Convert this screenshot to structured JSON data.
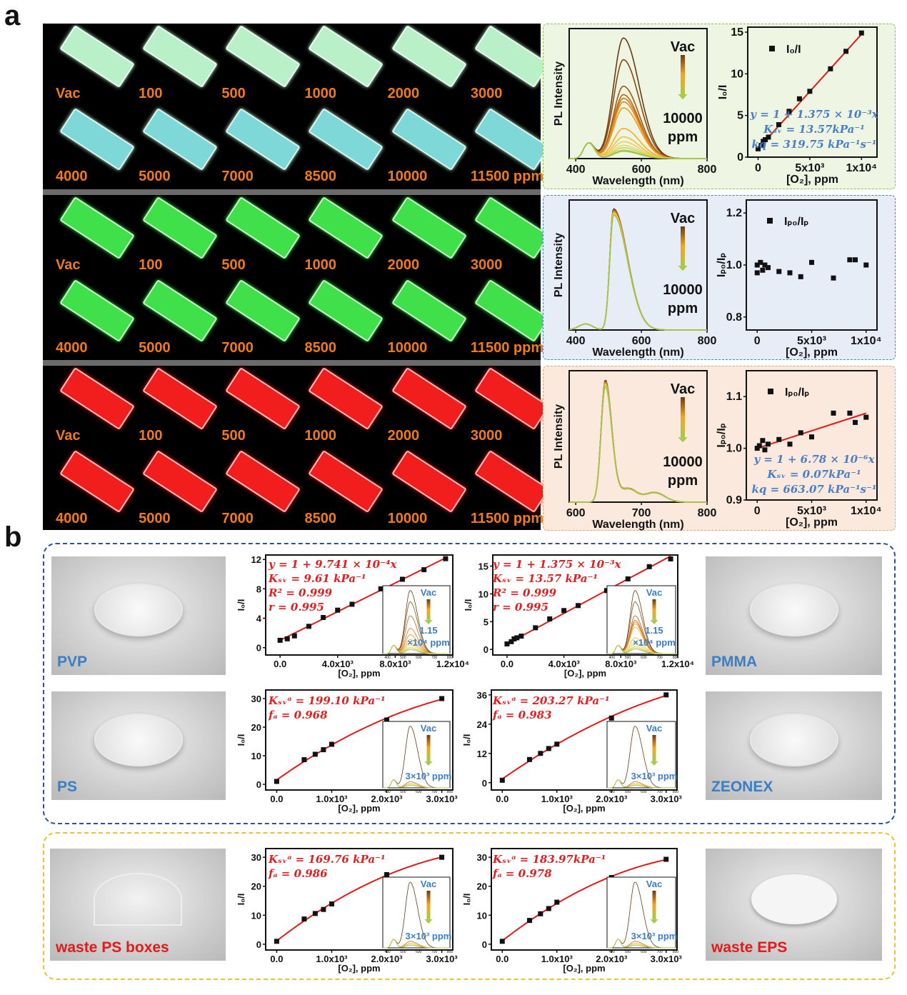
{
  "figure": {
    "panel_a_label": "a",
    "panel_b_label": "b"
  },
  "panel_a": {
    "label_color": "#f07a1e",
    "rows": [
      {
        "slab_color": "#b9f0c8",
        "labels": [
          "Vac",
          "100",
          "500",
          "1000",
          "2000",
          "3000",
          "4000",
          "5000",
          "7000",
          "8500",
          "10000",
          "11500 ppm"
        ]
      },
      {
        "slab_color": "#3fe04a",
        "labels": [
          "Vac",
          "100",
          "500",
          "1000",
          "2000",
          "3000",
          "4000",
          "5000",
          "7000",
          "8500",
          "10000",
          "11500 ppm"
        ]
      },
      {
        "slab_color": "#f21e1e",
        "labels": [
          "Vac",
          "100",
          "500",
          "1000",
          "2000",
          "3000",
          "4000",
          "5000",
          "7000",
          "8500",
          "10000",
          "11500 ppm"
        ]
      }
    ]
  },
  "panel_b": {
    "photos": [
      {
        "label": "PVP",
        "color": "#3b7ec4"
      },
      {
        "label": "PS",
        "color": "#3b7ec4"
      },
      {
        "label": "PMMA",
        "color": "#3b7ec4"
      },
      {
        "label": "ZEONEX",
        "color": "#3b7ec4"
      },
      {
        "label": "waste PS boxes",
        "color": "#e21b1b"
      },
      {
        "label": "waste EPS",
        "color": "#e21b1b"
      }
    ]
  },
  "colors": {
    "fit_line": "#e41a1a",
    "eq_blue": "#4a7fc8",
    "eq_red": "#e02020",
    "box_green": "#8bc34a",
    "box_blue": "#4f7fc0",
    "box_orange": "#f0a070",
    "box_b_blue": "#2e4f9a",
    "box_b_yellow": "#f0c030"
  },
  "chart_data": [
    {
      "type": "line",
      "xlabel": "Wavelength (nm)",
      "ylabel": "PL Intensity",
      "xlim": [
        380,
        800
      ],
      "xticks": [
        400,
        600,
        800
      ],
      "xtick_labels": [
        "400",
        "600",
        "800"
      ],
      "peak_wavelength_nm": 545,
      "peak_amplitudes": [
        1,
        0.82,
        0.6,
        0.53,
        0.5,
        0.47,
        0.42,
        0.25,
        0.18,
        0.14,
        0.11,
        0.09,
        0.07,
        0.06
      ],
      "arrow_top": "Vac",
      "arrow_bottom": [
        "10000",
        "ppm"
      ]
    },
    {
      "type": "scatter",
      "xlabel": "[O₂], ppm",
      "ylabel": "I₀/I",
      "legend": "I₀/I",
      "xlim": [
        -1000,
        11500
      ],
      "ylim": [
        0,
        15.6
      ],
      "xticks": [
        0,
        5000,
        10000
      ],
      "xtick_labels": [
        "0",
        "5x10³",
        "1x10⁴"
      ],
      "yticks": [
        0,
        5,
        10,
        15
      ],
      "ytick_labels": [
        "0",
        "5",
        "10",
        "15"
      ],
      "x": [
        0,
        300,
        500,
        700,
        1000,
        2000,
        3000,
        4000,
        5000,
        7000,
        8500,
        10000
      ],
      "y": [
        1,
        1.4,
        1.9,
        2.1,
        2.4,
        3.9,
        5.5,
        7.0,
        7.9,
        10.6,
        12.7,
        14.9
      ],
      "fit": {
        "type": "linear",
        "intercept": 1,
        "slope": 0.001375
      },
      "equation": [
        "y = 1 + 1.375 × 10⁻³x",
        "Kₛᵥ = 13.57kPa⁻¹",
        "kq = 319.75 kPa⁻¹s⁻¹"
      ]
    },
    {
      "type": "line",
      "xlabel": "Wavelength (nm)",
      "ylabel": "PL Intensity",
      "xlim": [
        380,
        800
      ],
      "xticks": [
        400,
        600,
        800
      ],
      "xtick_labels": [
        "400",
        "600",
        "800"
      ],
      "peak_wavelength_nm": 515,
      "peak_amplitudes": [
        1,
        0.99,
        0.98,
        0.97,
        0.96,
        0.95
      ],
      "arrow_top": "Vac",
      "arrow_bottom": [
        "10000",
        "ppm"
      ]
    },
    {
      "type": "scatter",
      "xlabel": "[O₂], ppm",
      "ylabel": "Iₚ₀/Iₚ",
      "legend": "Iₚ₀/Iₚ",
      "xlim": [
        -1000,
        11000
      ],
      "ylim": [
        0.75,
        1.25
      ],
      "xticks": [
        0,
        5000,
        10000
      ],
      "xtick_labels": [
        "0",
        "5x10³",
        "1x10⁴"
      ],
      "yticks": [
        0.8,
        1.0,
        1.2
      ],
      "ytick_labels": [
        "0.8",
        "1.0",
        "1.2"
      ],
      "x": [
        0,
        0,
        300,
        500,
        700,
        1000,
        2000,
        3000,
        4000,
        5000,
        7000,
        8500,
        9000,
        10000
      ],
      "y": [
        1.0,
        0.97,
        1.01,
        0.98,
        1.0,
        0.99,
        0.975,
        0.97,
        0.955,
        1.01,
        0.95,
        1.02,
        1.02,
        1.0
      ]
    },
    {
      "type": "line",
      "xlabel": "Wavelength (nm)",
      "ylabel": "PL Intensity",
      "xlim": [
        590,
        800
      ],
      "xticks": [
        600,
        700,
        800
      ],
      "xtick_labels": [
        "600",
        "700",
        "800"
      ],
      "peak_wavelength_nm": 645,
      "peak_amplitudes": [
        1,
        0.99,
        0.98,
        0.97,
        0.96,
        0.95
      ],
      "arrow_top": "Vac",
      "arrow_bottom": [
        "10000",
        "ppm"
      ]
    },
    {
      "type": "scatter",
      "xlabel": "[O₂], ppm",
      "ylabel": "Iₚ₀/Iₚ",
      "legend": "Iₚ₀/Iₚ",
      "xlim": [
        -1000,
        11000
      ],
      "ylim": [
        0.9,
        1.15
      ],
      "xticks": [
        0,
        5000,
        10000
      ],
      "xtick_labels": [
        "0",
        "5x10³",
        "1x10⁴"
      ],
      "yticks": [
        0.9,
        1.0,
        1.1
      ],
      "ytick_labels": [
        "0.9",
        "1.0",
        "1.1"
      ],
      "x": [
        0,
        200,
        500,
        700,
        1000,
        2000,
        3000,
        4000,
        5000,
        7000,
        8500,
        9000,
        10000
      ],
      "y": [
        1.0,
        1.005,
        1.015,
        0.997,
        1.008,
        1.017,
        1.008,
        1.03,
        1.022,
        1.068,
        1.068,
        1.05,
        1.06
      ],
      "fit": {
        "type": "linear",
        "intercept": 1,
        "slope": 6.78e-06
      },
      "equation": [
        "y = 1 + 6.78 × 10⁻⁶x",
        "Kₛᵥ = 0.07kPa⁻¹",
        "kq = 663.07 kPa⁻¹s⁻¹"
      ]
    },
    {
      "type": "scatter",
      "xlabel": "[O₂], ppm",
      "ylabel": "I₀/I",
      "xlim": [
        -1000,
        12000
      ],
      "ylim": [
        -1,
        12.6
      ],
      "xticks": [
        0,
        4000,
        8000,
        12000
      ],
      "xtick_labels": [
        "0.0",
        "4.0x10³",
        "8.0x10³",
        "1.2x10⁴"
      ],
      "yticks": [
        0,
        4,
        8,
        12
      ],
      "ytick_labels": [
        "0",
        "4",
        "8",
        "12"
      ],
      "x": [
        0,
        500,
        1000,
        2000,
        3000,
        4000,
        5000,
        7000,
        8500,
        10000,
        11500
      ],
      "y": [
        1,
        1.2,
        1.6,
        2.9,
        4.1,
        5.1,
        5.9,
        8.0,
        9.3,
        10.6,
        12.1
      ],
      "fit": {
        "type": "linear",
        "intercept": 1,
        "slope": 0.0009741
      },
      "equation": [
        "y = 1 + 9.741 × 10⁻⁴x",
        "Kₛᵥ = 9.61 kPa⁻¹",
        "R² = 0.999",
        "r = 0.995"
      ],
      "inset": {
        "peak_wavelength_nm": 545,
        "peak_amplitudes": [
          1,
          0.82,
          0.6,
          0.4,
          0.3,
          0.22,
          0.17,
          0.13,
          0.1,
          0.08,
          0.06
        ],
        "xticks": [
          400,
          500,
          600,
          700,
          800
        ],
        "arrow_top": "Vac",
        "arrow_bottom": [
          "1.15",
          "×10⁴ ppm"
        ]
      }
    },
    {
      "type": "scatter",
      "xlabel": "[O₂], ppm",
      "ylabel": "I₀/I",
      "xlim": [
        -1000,
        12000
      ],
      "ylim": [
        -1,
        17
      ],
      "xticks": [
        0,
        4000,
        8000,
        12000
      ],
      "xtick_labels": [
        "0.0",
        "4.0x10³",
        "8.0x10³",
        "1.2x10⁴"
      ],
      "yticks": [
        0,
        5,
        10,
        15
      ],
      "ytick_labels": [
        "0",
        "5",
        "10",
        "15"
      ],
      "x": [
        0,
        300,
        500,
        700,
        1000,
        2000,
        3000,
        4000,
        5000,
        7000,
        8500,
        10000,
        11500
      ],
      "y": [
        1,
        1.4,
        1.9,
        2.1,
        2.4,
        3.9,
        5.5,
        7.0,
        7.9,
        10.6,
        12.7,
        14.9,
        16.3
      ],
      "fit": {
        "type": "linear",
        "intercept": 1,
        "slope": 0.001375
      },
      "equation": [
        "y = 1 + 1.375 × 10⁻³x",
        "Kₛᵥ = 13.57 kPa⁻¹",
        "R² = 0.999",
        "r = 0.995"
      ],
      "inset": {
        "peak_wavelength_nm": 545,
        "peak_amplitudes": [
          1,
          0.82,
          0.6,
          0.53,
          0.5,
          0.47,
          0.42,
          0.25,
          0.18,
          0.14,
          0.11,
          0.09,
          0.07
        ],
        "xticks": [
          400,
          500,
          600,
          700,
          800
        ],
        "arrow_top": "Vac",
        "arrow_bottom": [
          "1.15",
          "×10⁴ ppm"
        ]
      }
    },
    {
      "type": "scatter",
      "xlabel": "[O₂], ppm",
      "ylabel": "I₀/I",
      "xlim": [
        -200,
        3200
      ],
      "ylim": [
        -2,
        33
      ],
      "xticks": [
        0,
        1000,
        2000,
        3000
      ],
      "xtick_labels": [
        "0.0",
        "1.0x10³",
        "2.0x10³",
        "3.0x10³"
      ],
      "yticks": [
        0,
        10,
        20,
        30
      ],
      "ytick_labels": [
        "0",
        "10",
        "20",
        "30"
      ],
      "x": [
        0,
        500,
        700,
        850,
        1000,
        2000,
        3000
      ],
      "y": [
        1,
        8.6,
        10.5,
        12.1,
        14,
        22.5,
        30
      ],
      "fit": {
        "type": "two-site"
      },
      "equation": [
        "Kₛᵥᵃ = 199.10 kPa⁻¹",
        "fₐ = 0.968"
      ],
      "inset": {
        "peak_wavelength_nm": 545,
        "peak_amplitudes": [
          1,
          0.1,
          0.07,
          0.05,
          0.04
        ],
        "xticks": [
          400,
          500,
          600,
          700,
          800
        ],
        "arrow_top": "Vac",
        "arrow_bottom": [
          "3×10³ ppm"
        ]
      }
    },
    {
      "type": "scatter",
      "xlabel": "[O₂], ppm",
      "ylabel": "I₀/I",
      "xlim": [
        -200,
        3200
      ],
      "ylim": [
        -3,
        38
      ],
      "xticks": [
        0,
        1000,
        2000,
        3000
      ],
      "xtick_labels": [
        "0.0",
        "1.0x10³",
        "2.0x10³",
        "3.0x10³"
      ],
      "yticks": [
        0,
        12,
        24,
        36
      ],
      "ytick_labels": [
        "0",
        "12",
        "24",
        "36"
      ],
      "x": [
        0,
        500,
        700,
        850,
        1000,
        2000,
        3000
      ],
      "y": [
        1,
        9.5,
        12,
        14,
        15.8,
        26.5,
        36
      ],
      "fit": {
        "type": "two-site"
      },
      "equation": [
        "Kₛᵥᵃ = 203.27 kPa⁻¹",
        "fₐ = 0.983"
      ],
      "inset": {
        "peak_wavelength_nm": 545,
        "peak_amplitudes": [
          1,
          0.1,
          0.07,
          0.05,
          0.04
        ],
        "xticks": [
          400,
          500,
          600,
          700,
          800
        ],
        "arrow_top": "Vac",
        "arrow_bottom": [
          "3×10³ ppm"
        ]
      }
    },
    {
      "type": "scatter",
      "xlabel": "[O₂], ppm",
      "ylabel": "I₀/I",
      "xlim": [
        -200,
        3200
      ],
      "ylim": [
        -2,
        33
      ],
      "xticks": [
        0,
        1000,
        2000,
        3000
      ],
      "xtick_labels": [
        "0.0",
        "1.0x10³",
        "2.0x10³",
        "3.0x10³"
      ],
      "yticks": [
        0,
        10,
        20,
        30
      ],
      "ytick_labels": [
        "0",
        "10",
        "20",
        "30"
      ],
      "x": [
        0,
        500,
        700,
        850,
        1000,
        2000,
        3000
      ],
      "y": [
        1,
        8.7,
        10.6,
        12,
        13.9,
        24,
        30
      ],
      "fit": {
        "type": "two-site"
      },
      "equation": [
        "Kₛᵥᵃ = 169.76 kPa⁻¹",
        "fₐ = 0.986"
      ],
      "inset": {
        "peak_wavelength_nm": 545,
        "peak_amplitudes": [
          1,
          0.1,
          0.07,
          0.05,
          0.04
        ],
        "xticks": [
          400,
          500,
          600,
          700,
          800
        ],
        "arrow_top": "Vac",
        "arrow_bottom": [
          "3×10³ ppm"
        ]
      }
    },
    {
      "type": "scatter",
      "xlabel": "[O₂], ppm",
      "ylabel": "I₀/I",
      "xlim": [
        -200,
        3200
      ],
      "ylim": [
        -2,
        33
      ],
      "xticks": [
        0,
        1000,
        2000,
        3000
      ],
      "xtick_labels": [
        "0.0",
        "1.0x10³",
        "2.0x10³",
        "3.0x10³"
      ],
      "yticks": [
        0,
        10,
        20,
        30
      ],
      "ytick_labels": [
        "0",
        "10",
        "20",
        "30"
      ],
      "x": [
        0,
        500,
        700,
        850,
        1000,
        2000,
        3000
      ],
      "y": [
        1,
        8.2,
        10.5,
        12.3,
        14.5,
        23,
        29.3
      ],
      "fit": {
        "type": "two-site"
      },
      "equation": [
        "Kₛᵥᵃ = 183.97kPa⁻¹",
        "fₐ = 0.978"
      ],
      "inset": {
        "peak_wavelength_nm": 545,
        "peak_amplitudes": [
          1,
          0.1,
          0.07,
          0.05,
          0.04
        ],
        "xticks": [
          400,
          500,
          600,
          700,
          800
        ],
        "arrow_top": "Vac",
        "arrow_bottom": [
          "3×10³ ppm"
        ]
      }
    }
  ]
}
